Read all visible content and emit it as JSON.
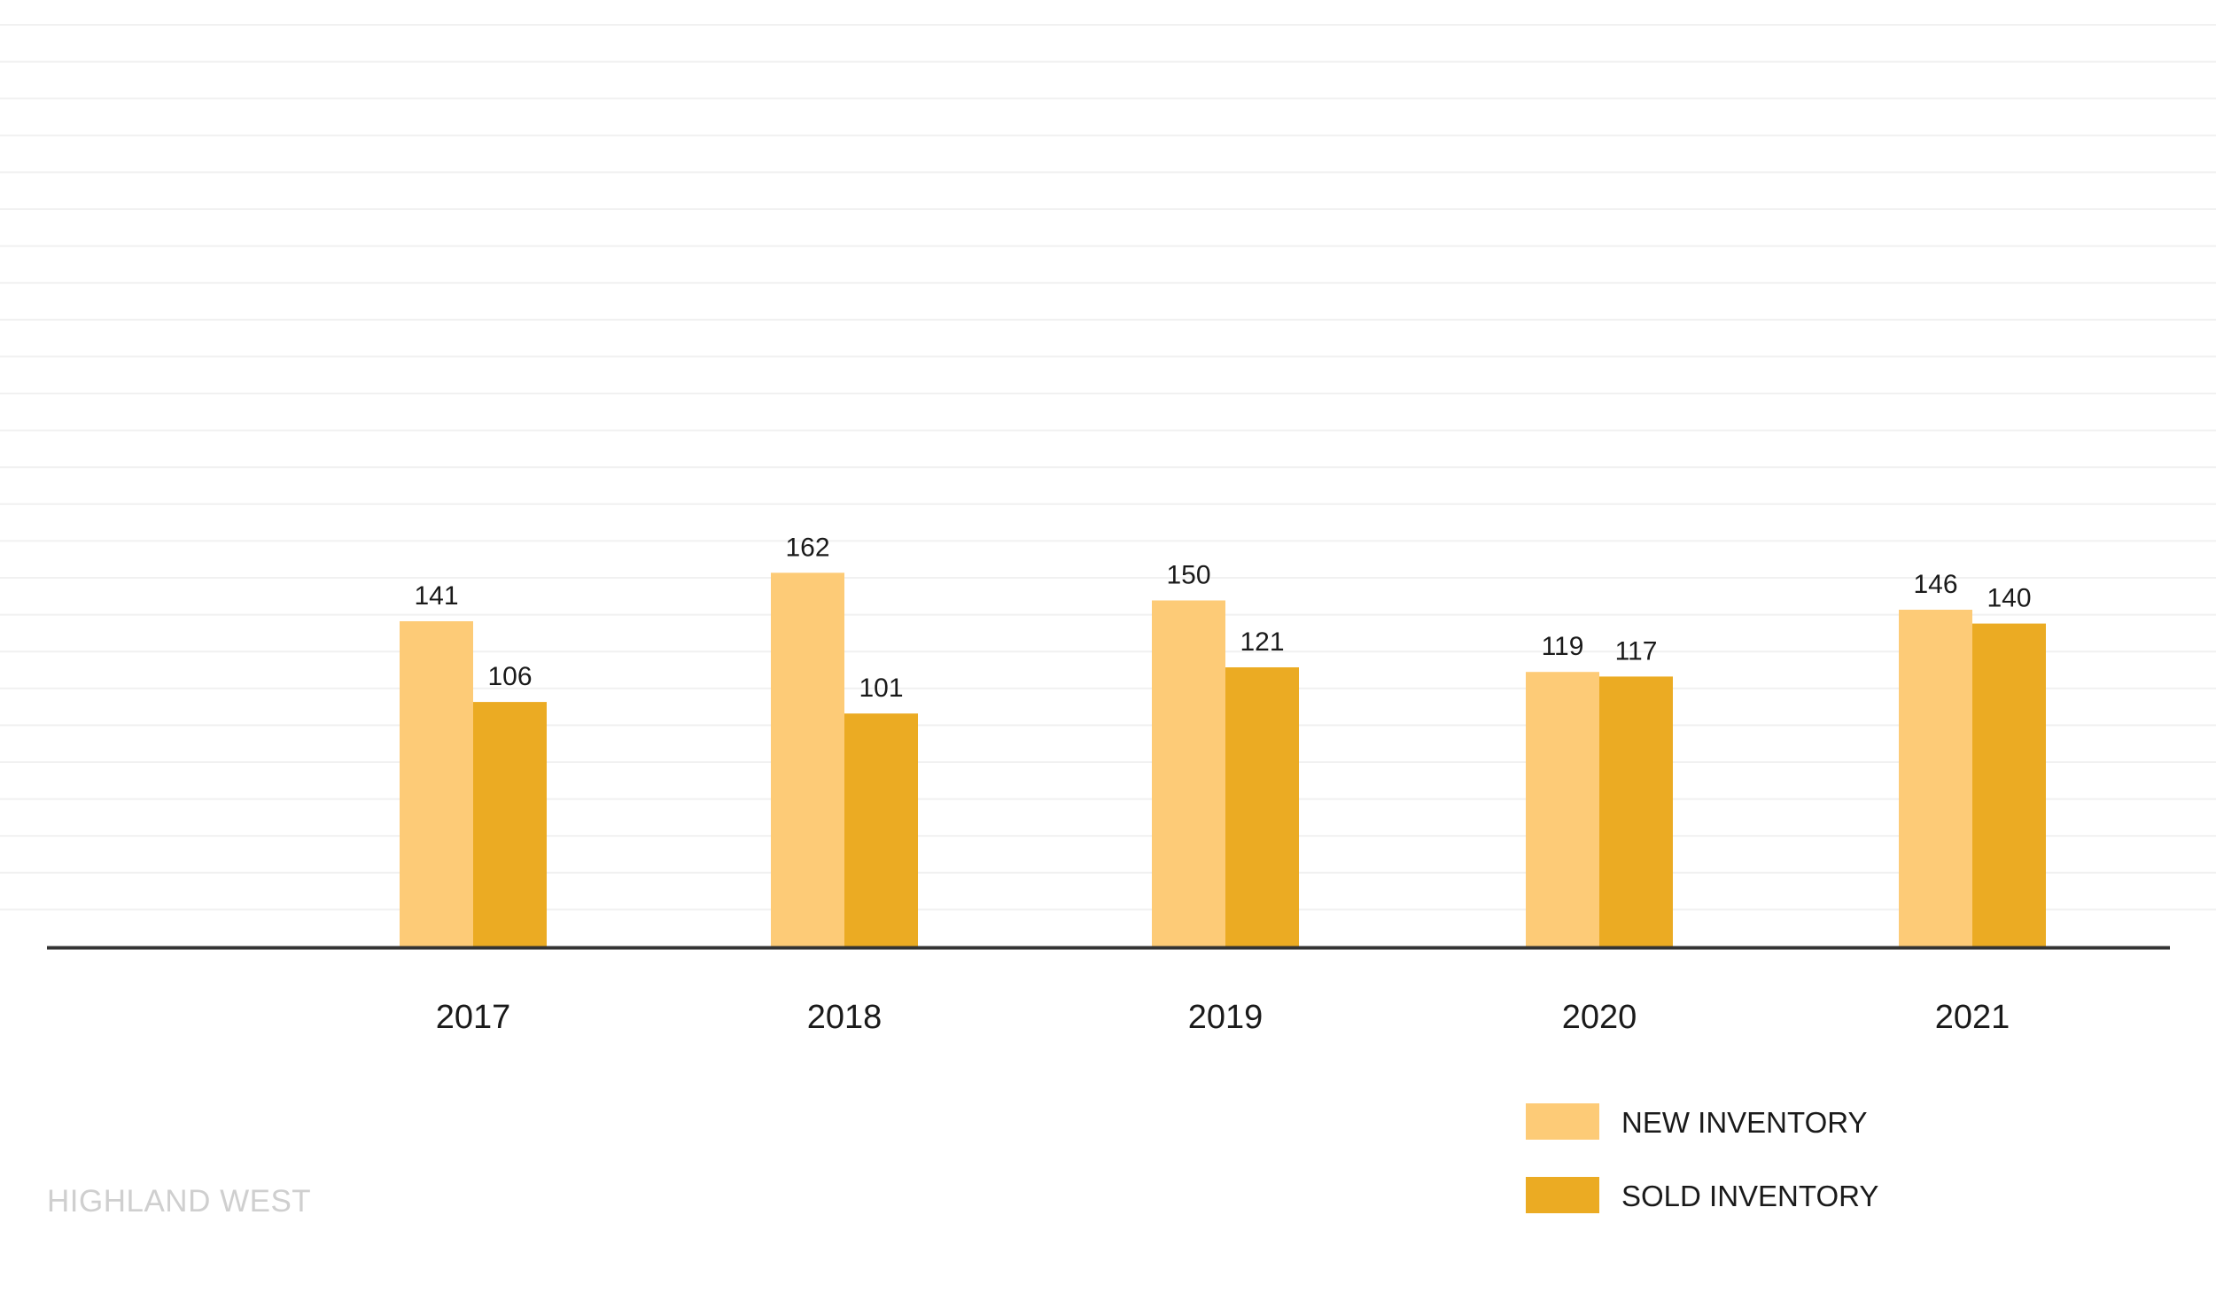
{
  "footer": {
    "watermark": "HIGHLAND WEST"
  },
  "colors": {
    "new_inventory": "#FDCB77",
    "sold_inventory": "#EBAB23",
    "axis": "#333333",
    "grid": "#f1f1f1",
    "text": "#1a1a1a"
  },
  "chart_data": {
    "type": "bar",
    "title": "",
    "xlabel": "",
    "ylabel": "",
    "categories": [
      "2017",
      "2018",
      "2019",
      "2020",
      "2021"
    ],
    "series": [
      {
        "name": "NEW INVENTORY",
        "values": [
          141,
          162,
          150,
          119,
          146
        ]
      },
      {
        "name": "SOLD INVENTORY",
        "values": [
          106,
          101,
          121,
          117,
          140
        ]
      }
    ],
    "ylim": [
      0,
      250
    ],
    "grid": true,
    "legend": "bottom-right",
    "data_labels": true
  }
}
